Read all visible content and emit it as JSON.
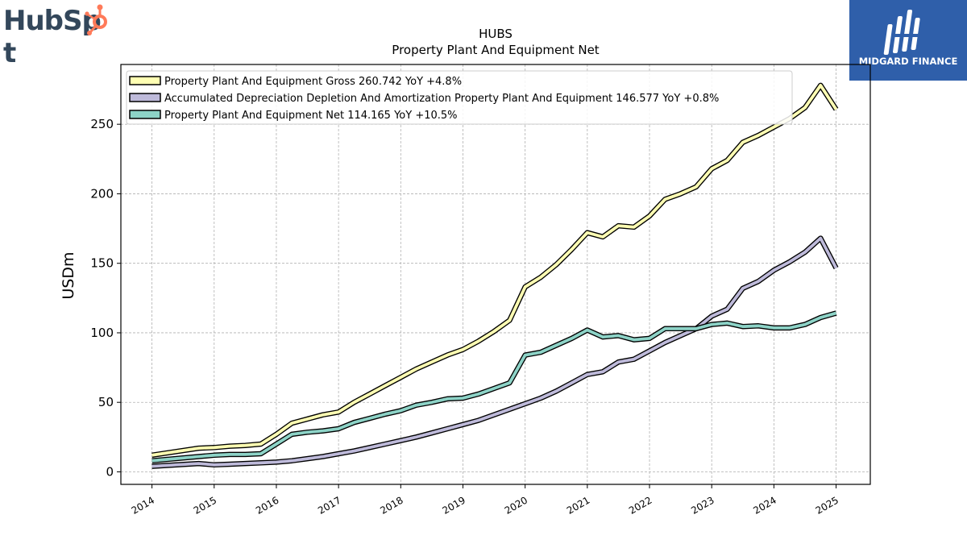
{
  "logos": {
    "left": {
      "name": "HubSpot",
      "text": "HubSpot",
      "color": "#33475b",
      "accent": "#ff7a59"
    },
    "right": {
      "name": "Midgard Finance",
      "text": "MIDGARD FINANCE",
      "background": "#2f5faa"
    }
  },
  "chart_data": {
    "type": "line",
    "title": "HUBS",
    "subtitle": "Property Plant And Equipment Net",
    "xlabel": "",
    "ylabel": "USDm",
    "xlim": [
      2013.5,
      2025.55
    ],
    "ylim": [
      -9,
      293
    ],
    "xticks": [
      {
        "value": 2014,
        "label": "2014"
      },
      {
        "value": 2015,
        "label": "2015"
      },
      {
        "value": 2016,
        "label": "2016"
      },
      {
        "value": 2017,
        "label": "2017"
      },
      {
        "value": 2018,
        "label": "2018"
      },
      {
        "value": 2019,
        "label": "2019"
      },
      {
        "value": 2020,
        "label": "2020"
      },
      {
        "value": 2021,
        "label": "2021"
      },
      {
        "value": 2022,
        "label": "2022"
      },
      {
        "value": 2023,
        "label": "2023"
      },
      {
        "value": 2024,
        "label": "2024"
      },
      {
        "value": 2025,
        "label": "2025"
      }
    ],
    "yticks": [
      {
        "value": 0,
        "label": "0"
      },
      {
        "value": 50,
        "label": "50"
      },
      {
        "value": 100,
        "label": "100"
      },
      {
        "value": 150,
        "label": "150"
      },
      {
        "value": 200,
        "label": "200"
      },
      {
        "value": 250,
        "label": "250"
      }
    ],
    "grid": true,
    "legend_position": "top-left",
    "series": [
      {
        "name": "Property Plant And Equipment Gross",
        "legend_label": "Property Plant And Equipment Gross  260.742 YoY +4.8%",
        "color": "#ffffb3",
        "x": [
          2014.0,
          2014.75,
          2015.0,
          2015.25,
          2015.5,
          2015.75,
          2016.0,
          2016.25,
          2016.5,
          2016.75,
          2017.0,
          2017.25,
          2017.5,
          2017.75,
          2018.0,
          2018.25,
          2018.5,
          2018.75,
          2019.0,
          2019.25,
          2019.5,
          2019.75,
          2020.0,
          2020.25,
          2020.5,
          2020.75,
          2021.0,
          2021.25,
          2021.5,
          2021.75,
          2022.0,
          2022.25,
          2022.5,
          2022.75,
          2023.0,
          2023.25,
          2023.5,
          2023.75,
          2024.0,
          2024.25,
          2024.5,
          2024.75,
          2025.0
        ],
        "values": [
          12,
          17,
          17.5,
          18.5,
          19,
          20,
          27,
          35,
          38,
          41,
          43,
          50,
          56,
          62,
          68,
          74,
          79,
          84,
          88,
          94,
          101,
          109,
          133,
          140,
          149,
          160,
          172,
          169,
          177,
          176,
          184,
          196,
          200,
          205,
          218,
          224,
          237,
          242,
          248,
          254,
          262,
          278,
          260.742
        ]
      },
      {
        "name": "Accumulated Depreciation Depletion And Amortization Property Plant And Equipment",
        "legend_label": "Accumulated Depreciation Depletion And Amortization Property Plant And Equipment  146.577 YoY +0.8%",
        "color": "#bebada",
        "x": [
          2014.0,
          2014.75,
          2015.0,
          2015.25,
          2015.5,
          2015.75,
          2016.0,
          2016.25,
          2016.5,
          2016.75,
          2017.0,
          2017.25,
          2017.5,
          2017.75,
          2018.0,
          2018.25,
          2018.5,
          2018.75,
          2019.0,
          2019.25,
          2019.5,
          2019.75,
          2020.0,
          2020.25,
          2020.5,
          2020.75,
          2021.0,
          2021.25,
          2021.5,
          2021.75,
          2022.0,
          2022.25,
          2022.5,
          2022.75,
          2023.0,
          2023.25,
          2023.5,
          2023.75,
          2024.0,
          2024.25,
          2024.5,
          2024.75,
          2025.0
        ],
        "values": [
          4,
          6,
          5,
          5.5,
          6,
          6.5,
          7,
          8,
          9.5,
          11,
          13,
          15,
          17.5,
          20,
          22.5,
          25,
          28,
          31,
          34,
          37,
          41,
          45,
          49,
          53,
          58,
          64,
          70,
          72,
          79,
          81,
          87,
          93,
          98,
          103,
          112,
          117,
          132,
          137,
          145,
          151,
          158,
          168,
          146.577
        ]
      },
      {
        "name": "Property Plant And Equipment Net",
        "legend_label": "Property Plant And Equipment Net  114.165 YoY +10.5%",
        "color": "#8dd3c7",
        "x": [
          2014.0,
          2014.75,
          2015.0,
          2015.25,
          2015.5,
          2015.75,
          2016.0,
          2016.25,
          2016.5,
          2016.75,
          2017.0,
          2017.25,
          2017.5,
          2017.75,
          2018.0,
          2018.25,
          2018.5,
          2018.75,
          2019.0,
          2019.25,
          2019.5,
          2019.75,
          2020.0,
          2020.25,
          2020.5,
          2020.75,
          2021.0,
          2021.25,
          2021.5,
          2021.75,
          2022.0,
          2022.25,
          2022.5,
          2022.75,
          2023.0,
          2023.25,
          2023.5,
          2023.75,
          2024.0,
          2024.25,
          2024.5,
          2024.75,
          2025.0
        ],
        "values": [
          8,
          11,
          12,
          12.5,
          12.5,
          13,
          20,
          27,
          28.5,
          29.5,
          31,
          35.5,
          38.5,
          41.5,
          44,
          48,
          50,
          52.5,
          53,
          56,
          60,
          64,
          84,
          86,
          91,
          96,
          102,
          97,
          98,
          95,
          96,
          103,
          103,
          103,
          106,
          107,
          104.5,
          105,
          103.5,
          103.5,
          106,
          111,
          114.165
        ]
      }
    ]
  }
}
